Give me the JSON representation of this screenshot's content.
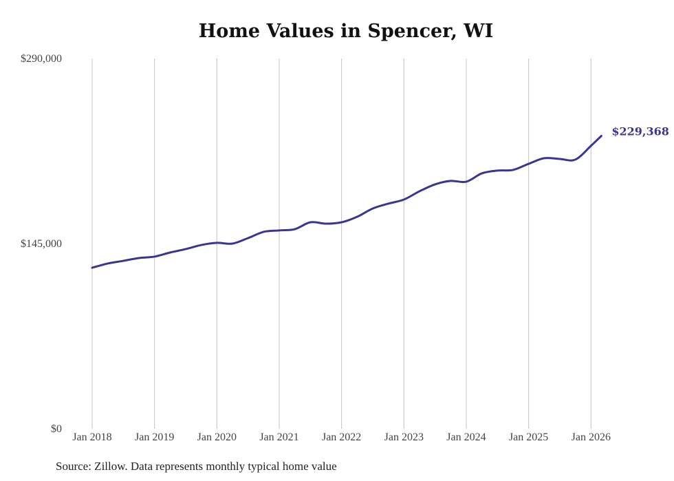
{
  "chart_data": {
    "type": "line",
    "title": "Home Values in Spencer, WI",
    "xlabel": "",
    "ylabel": "",
    "ylim": [
      0,
      290000
    ],
    "y_ticks": [
      0,
      145000,
      290000
    ],
    "y_tick_labels": [
      "$0",
      "$145,000",
      "$290,000"
    ],
    "x_tick_labels": [
      "Jan 2018",
      "Jan 2019",
      "Jan 2020",
      "Jan 2021",
      "Jan 2022",
      "Jan 2023",
      "Jan 2024",
      "Jan 2025",
      "Jan 2026"
    ],
    "grid": "vertical",
    "series": [
      {
        "name": "Typical home value",
        "color": "#3b3592",
        "x": [
          "2018-01",
          "2018-04",
          "2018-07",
          "2018-10",
          "2019-01",
          "2019-04",
          "2019-07",
          "2019-10",
          "2020-01",
          "2020-04",
          "2020-07",
          "2020-10",
          "2021-01",
          "2021-04",
          "2021-07",
          "2021-10",
          "2022-01",
          "2022-04",
          "2022-07",
          "2022-10",
          "2023-01",
          "2023-04",
          "2023-07",
          "2023-10",
          "2024-01",
          "2024-04",
          "2024-07",
          "2024-10",
          "2025-01",
          "2025-04",
          "2025-07",
          "2025-10",
          "2026-01",
          "2026-03"
        ],
        "values": [
          126100,
          129400,
          131500,
          133700,
          134800,
          138000,
          140700,
          143900,
          145600,
          145000,
          149300,
          154200,
          155300,
          156300,
          161700,
          160600,
          161700,
          166000,
          172500,
          176300,
          179500,
          186000,
          191400,
          194100,
          193500,
          200000,
          202200,
          202700,
          207500,
          211900,
          211300,
          210800,
          221600,
          229368
        ]
      }
    ],
    "end_label": "$229,368"
  },
  "source": "Source: Zillow. Data represents monthly typical home value"
}
